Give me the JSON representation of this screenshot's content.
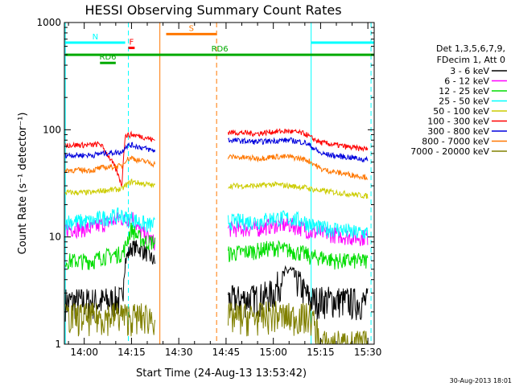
{
  "chart_data": {
    "type": "line",
    "title": "HESSI Observing Summary Count Rates",
    "xlabel": "Start Time (24-Aug-13 13:53:42)",
    "ylabel": "Count Rate (s⁻¹ detector⁻¹)",
    "yscale": "log",
    "ylim": [
      1,
      1000
    ],
    "xlim": [
      "13:53:42",
      "15:32:00"
    ],
    "x_ticks": [
      "14:00",
      "14:15",
      "14:30",
      "14:45",
      "15:00",
      "15:15",
      "15:30"
    ],
    "y_ticks": [
      "1",
      "10",
      "100",
      "1000"
    ],
    "legend_title": [
      "Det 1,3,5,6,7,9,",
      "FDecim 1, Att 0"
    ],
    "legend_position": "right",
    "series": [
      {
        "name": "3 - 6 keV",
        "color": "#000000",
        "x": [
          "13:54",
          "14:03",
          "14:05",
          "14:12",
          "14:13",
          "14:15",
          "14:17",
          "14:20",
          "14:22",
          "14:46",
          "14:55",
          "15:00",
          "15:05",
          "15:10",
          "15:12",
          "15:15",
          "15:20",
          "15:25",
          "15:30"
        ],
        "y": [
          2.5,
          2.5,
          2.5,
          2.6,
          6,
          8,
          8,
          7,
          6,
          2.6,
          2.7,
          3,
          5,
          3,
          2.6,
          2.6,
          2.6,
          2.5,
          2.5
        ]
      },
      {
        "name": "6 - 12 keV",
        "color": "#ff00ff",
        "x": [
          "13:54",
          "14:03",
          "14:05",
          "14:12",
          "14:13",
          "14:15",
          "14:17",
          "14:20",
          "14:22",
          "14:46",
          "14:55",
          "15:00",
          "15:05",
          "15:10",
          "15:12",
          "15:15",
          "15:20",
          "15:25",
          "15:30"
        ],
        "y": [
          12,
          12,
          13,
          15,
          14,
          16,
          12,
          10,
          9,
          12,
          12,
          13,
          13,
          12,
          11,
          11,
          10.5,
          10,
          10
        ]
      },
      {
        "name": "12 - 25 keV",
        "color": "#00dd00",
        "x": [
          "13:54",
          "14:03",
          "14:05",
          "14:12",
          "14:13",
          "14:15",
          "14:17",
          "14:20",
          "14:22",
          "14:46",
          "14:55",
          "15:00",
          "15:05",
          "15:10",
          "15:12",
          "15:15",
          "15:20",
          "15:25",
          "15:30"
        ],
        "y": [
          6,
          6,
          6.5,
          7,
          8,
          12,
          10,
          9,
          9,
          7,
          7.5,
          8,
          7.5,
          7,
          6.5,
          6.5,
          6,
          6,
          6
        ]
      },
      {
        "name": "25 - 50 keV",
        "color": "#00ffff",
        "x": [
          "13:54",
          "14:03",
          "14:05",
          "14:12",
          "14:13",
          "14:15",
          "14:17",
          "14:20",
          "14:22",
          "14:46",
          "14:55",
          "15:00",
          "15:05",
          "15:10",
          "15:12",
          "15:15",
          "15:20",
          "15:25",
          "15:30"
        ],
        "y": [
          14,
          14,
          15,
          16,
          15,
          15,
          14,
          13,
          13,
          14,
          14,
          15,
          15,
          14,
          13,
          12,
          12,
          11,
          11
        ]
      },
      {
        "name": "50 - 100 keV",
        "color": "#cccc00",
        "x": [
          "13:54",
          "14:03",
          "14:05",
          "14:12",
          "14:13",
          "14:15",
          "14:17",
          "14:20",
          "14:22",
          "14:46",
          "14:55",
          "15:00",
          "15:05",
          "15:10",
          "15:12",
          "15:15",
          "15:20",
          "15:25",
          "15:30"
        ],
        "y": [
          26,
          26,
          27,
          28,
          30,
          33,
          32,
          31,
          30,
          30,
          30,
          31,
          30,
          29,
          28,
          27,
          26,
          25,
          24
        ]
      },
      {
        "name": "100 - 300 keV",
        "color": "#ff0000",
        "x": [
          "13:54",
          "14:03",
          "14:05",
          "14:12",
          "14:13",
          "14:15",
          "14:17",
          "14:20",
          "14:22",
          "14:46",
          "14:55",
          "15:00",
          "15:05",
          "15:10",
          "15:12",
          "15:15",
          "15:20",
          "15:25",
          "15:30"
        ],
        "y": [
          72,
          72,
          74,
          30,
          88,
          90,
          88,
          84,
          80,
          95,
          92,
          96,
          97,
          92,
          84,
          76,
          72,
          68,
          66
        ]
      },
      {
        "name": "300 - 800 keV",
        "color": "#0000dd",
        "x": [
          "13:54",
          "14:03",
          "14:05",
          "14:12",
          "14:13",
          "14:15",
          "14:17",
          "14:20",
          "14:22",
          "14:46",
          "14:55",
          "15:00",
          "15:05",
          "15:10",
          "15:12",
          "15:15",
          "15:20",
          "15:25",
          "15:30"
        ],
        "y": [
          58,
          58,
          60,
          62,
          70,
          72,
          70,
          66,
          64,
          80,
          77,
          79,
          80,
          76,
          70,
          60,
          57,
          55,
          52
        ]
      },
      {
        "name": "800 - 7000 keV",
        "color": "#ff7700",
        "x": [
          "13:54",
          "14:03",
          "14:05",
          "14:12",
          "14:13",
          "14:15",
          "14:17",
          "14:20",
          "14:22",
          "14:46",
          "14:55",
          "15:00",
          "15:05",
          "15:10",
          "15:12",
          "15:15",
          "15:20",
          "15:25",
          "15:30"
        ],
        "y": [
          42,
          42,
          44,
          46,
          52,
          55,
          52,
          50,
          48,
          56,
          54,
          56,
          56,
          53,
          50,
          43,
          40,
          38,
          36
        ]
      },
      {
        "name": "7000 - 20000 keV",
        "color": "#808000",
        "x": [
          "13:54",
          "14:03",
          "14:05",
          "14:12",
          "14:13",
          "14:15",
          "14:17",
          "14:20",
          "14:22",
          "14:46",
          "14:55",
          "15:00",
          "15:05",
          "15:10",
          "15:12",
          "15:15",
          "15:20",
          "15:25",
          "15:30"
        ],
        "y": [
          1.8,
          1.8,
          1.8,
          1.9,
          1.8,
          1.8,
          1.8,
          1.8,
          1.8,
          1.8,
          1.8,
          1.9,
          1.8,
          1.8,
          1.8,
          1.0,
          1.0,
          1.0,
          1.0
        ]
      }
    ],
    "flag_bars": [
      {
        "label": "N",
        "color": "#00ffff",
        "start": "13:54",
        "end": "14:13",
        "level": 650
      },
      {
        "label": "F",
        "color": "#ff0000",
        "start": "14:14",
        "end": "14:16",
        "level": 580
      },
      {
        "label": "RD6",
        "color": "#00aa00",
        "start": "13:54",
        "end": "15:32",
        "level": 500
      },
      {
        "label": "RD6",
        "color": "#00aa00",
        "start": "14:05",
        "end": "14:10",
        "level": 420
      },
      {
        "label": "S",
        "color": "#ff7700",
        "start": "14:26",
        "end": "14:42",
        "level": 780
      },
      {
        "label": "",
        "color": "#00ffff",
        "start": "15:12",
        "end": "15:32",
        "level": 650
      }
    ],
    "vertical_lines": [
      {
        "time": "13:54",
        "color": "#00ffff",
        "style": "solid"
      },
      {
        "time": "14:14",
        "color": "#00ffff",
        "style": "dashed"
      },
      {
        "time": "14:24",
        "color": "#ff7700",
        "style": "solid"
      },
      {
        "time": "14:42",
        "color": "#ff7700",
        "style": "dashed"
      },
      {
        "time": "15:12",
        "color": "#00ffff",
        "style": "solid"
      },
      {
        "time": "15:31",
        "color": "#00ffff",
        "style": "dashed"
      }
    ],
    "footer": "30-Aug-2013 18:01"
  }
}
